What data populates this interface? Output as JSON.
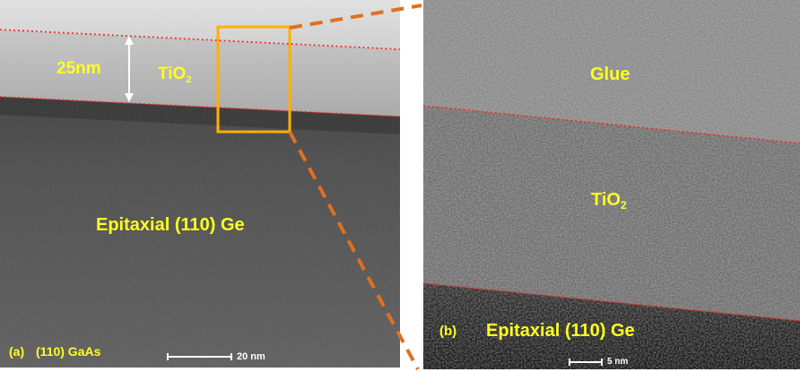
{
  "panel_a": {
    "thickness_label": "25nm",
    "layer_label_main": "TiO",
    "layer_label_sub": "2",
    "substrate_label": "Epitaxial (110) Ge",
    "panel_tag": "(a)",
    "base_label": "(110) GaAs",
    "scale_bar": "20 nm"
  },
  "panel_b": {
    "glue_label": "Glue",
    "layer_label_main": "TiO",
    "layer_label_sub": "2",
    "substrate_label": "Epitaxial (110) Ge",
    "panel_tag": "(b)",
    "scale_bar": "5 nm"
  },
  "colors": {
    "label_yellow": "#ffff22",
    "boundary_red": "#ff2020",
    "zoom_orange": "#e07020",
    "inset_box": "#ffb000"
  }
}
